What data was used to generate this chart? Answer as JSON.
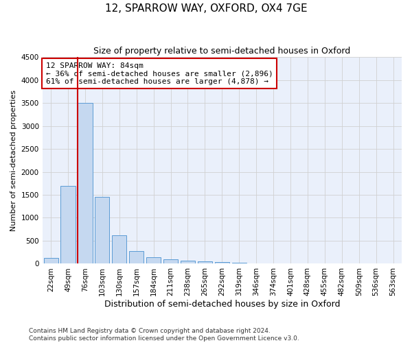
{
  "title": "12, SPARROW WAY, OXFORD, OX4 7GE",
  "subtitle": "Size of property relative to semi-detached houses in Oxford",
  "xlabel": "Distribution of semi-detached houses by size in Oxford",
  "ylabel": "Number of semi-detached properties",
  "categories": [
    "22sqm",
    "49sqm",
    "76sqm",
    "103sqm",
    "130sqm",
    "157sqm",
    "184sqm",
    "211sqm",
    "238sqm",
    "265sqm",
    "292sqm",
    "319sqm",
    "346sqm",
    "374sqm",
    "401sqm",
    "428sqm",
    "455sqm",
    "482sqm",
    "509sqm",
    "536sqm",
    "563sqm"
  ],
  "values": [
    130,
    1700,
    3500,
    1450,
    620,
    270,
    145,
    90,
    70,
    50,
    35,
    20,
    12,
    8,
    5,
    4,
    3,
    2,
    2,
    1,
    1
  ],
  "bar_color": "#c5d8f0",
  "bar_edge_color": "#5b9bd5",
  "grid_color": "#d0d0d0",
  "bg_color": "#ffffff",
  "plot_bg_color": "#eaf0fb",
  "vline_index": 2,
  "vline_color": "#cc0000",
  "annotation_line1": "12 SPARROW WAY: 84sqm",
  "annotation_line2": "← 36% of semi-detached houses are smaller (2,896)",
  "annotation_line3": "61% of semi-detached houses are larger (4,878) →",
  "annotation_box_color": "#cc0000",
  "ylim": [
    0,
    4500
  ],
  "yticks": [
    0,
    500,
    1000,
    1500,
    2000,
    2500,
    3000,
    3500,
    4000,
    4500
  ],
  "footer": "Contains HM Land Registry data © Crown copyright and database right 2024.\nContains public sector information licensed under the Open Government Licence v3.0.",
  "title_fontsize": 11,
  "subtitle_fontsize": 9,
  "xlabel_fontsize": 9,
  "ylabel_fontsize": 8,
  "tick_fontsize": 7.5,
  "annotation_fontsize": 8,
  "footer_fontsize": 6.5
}
